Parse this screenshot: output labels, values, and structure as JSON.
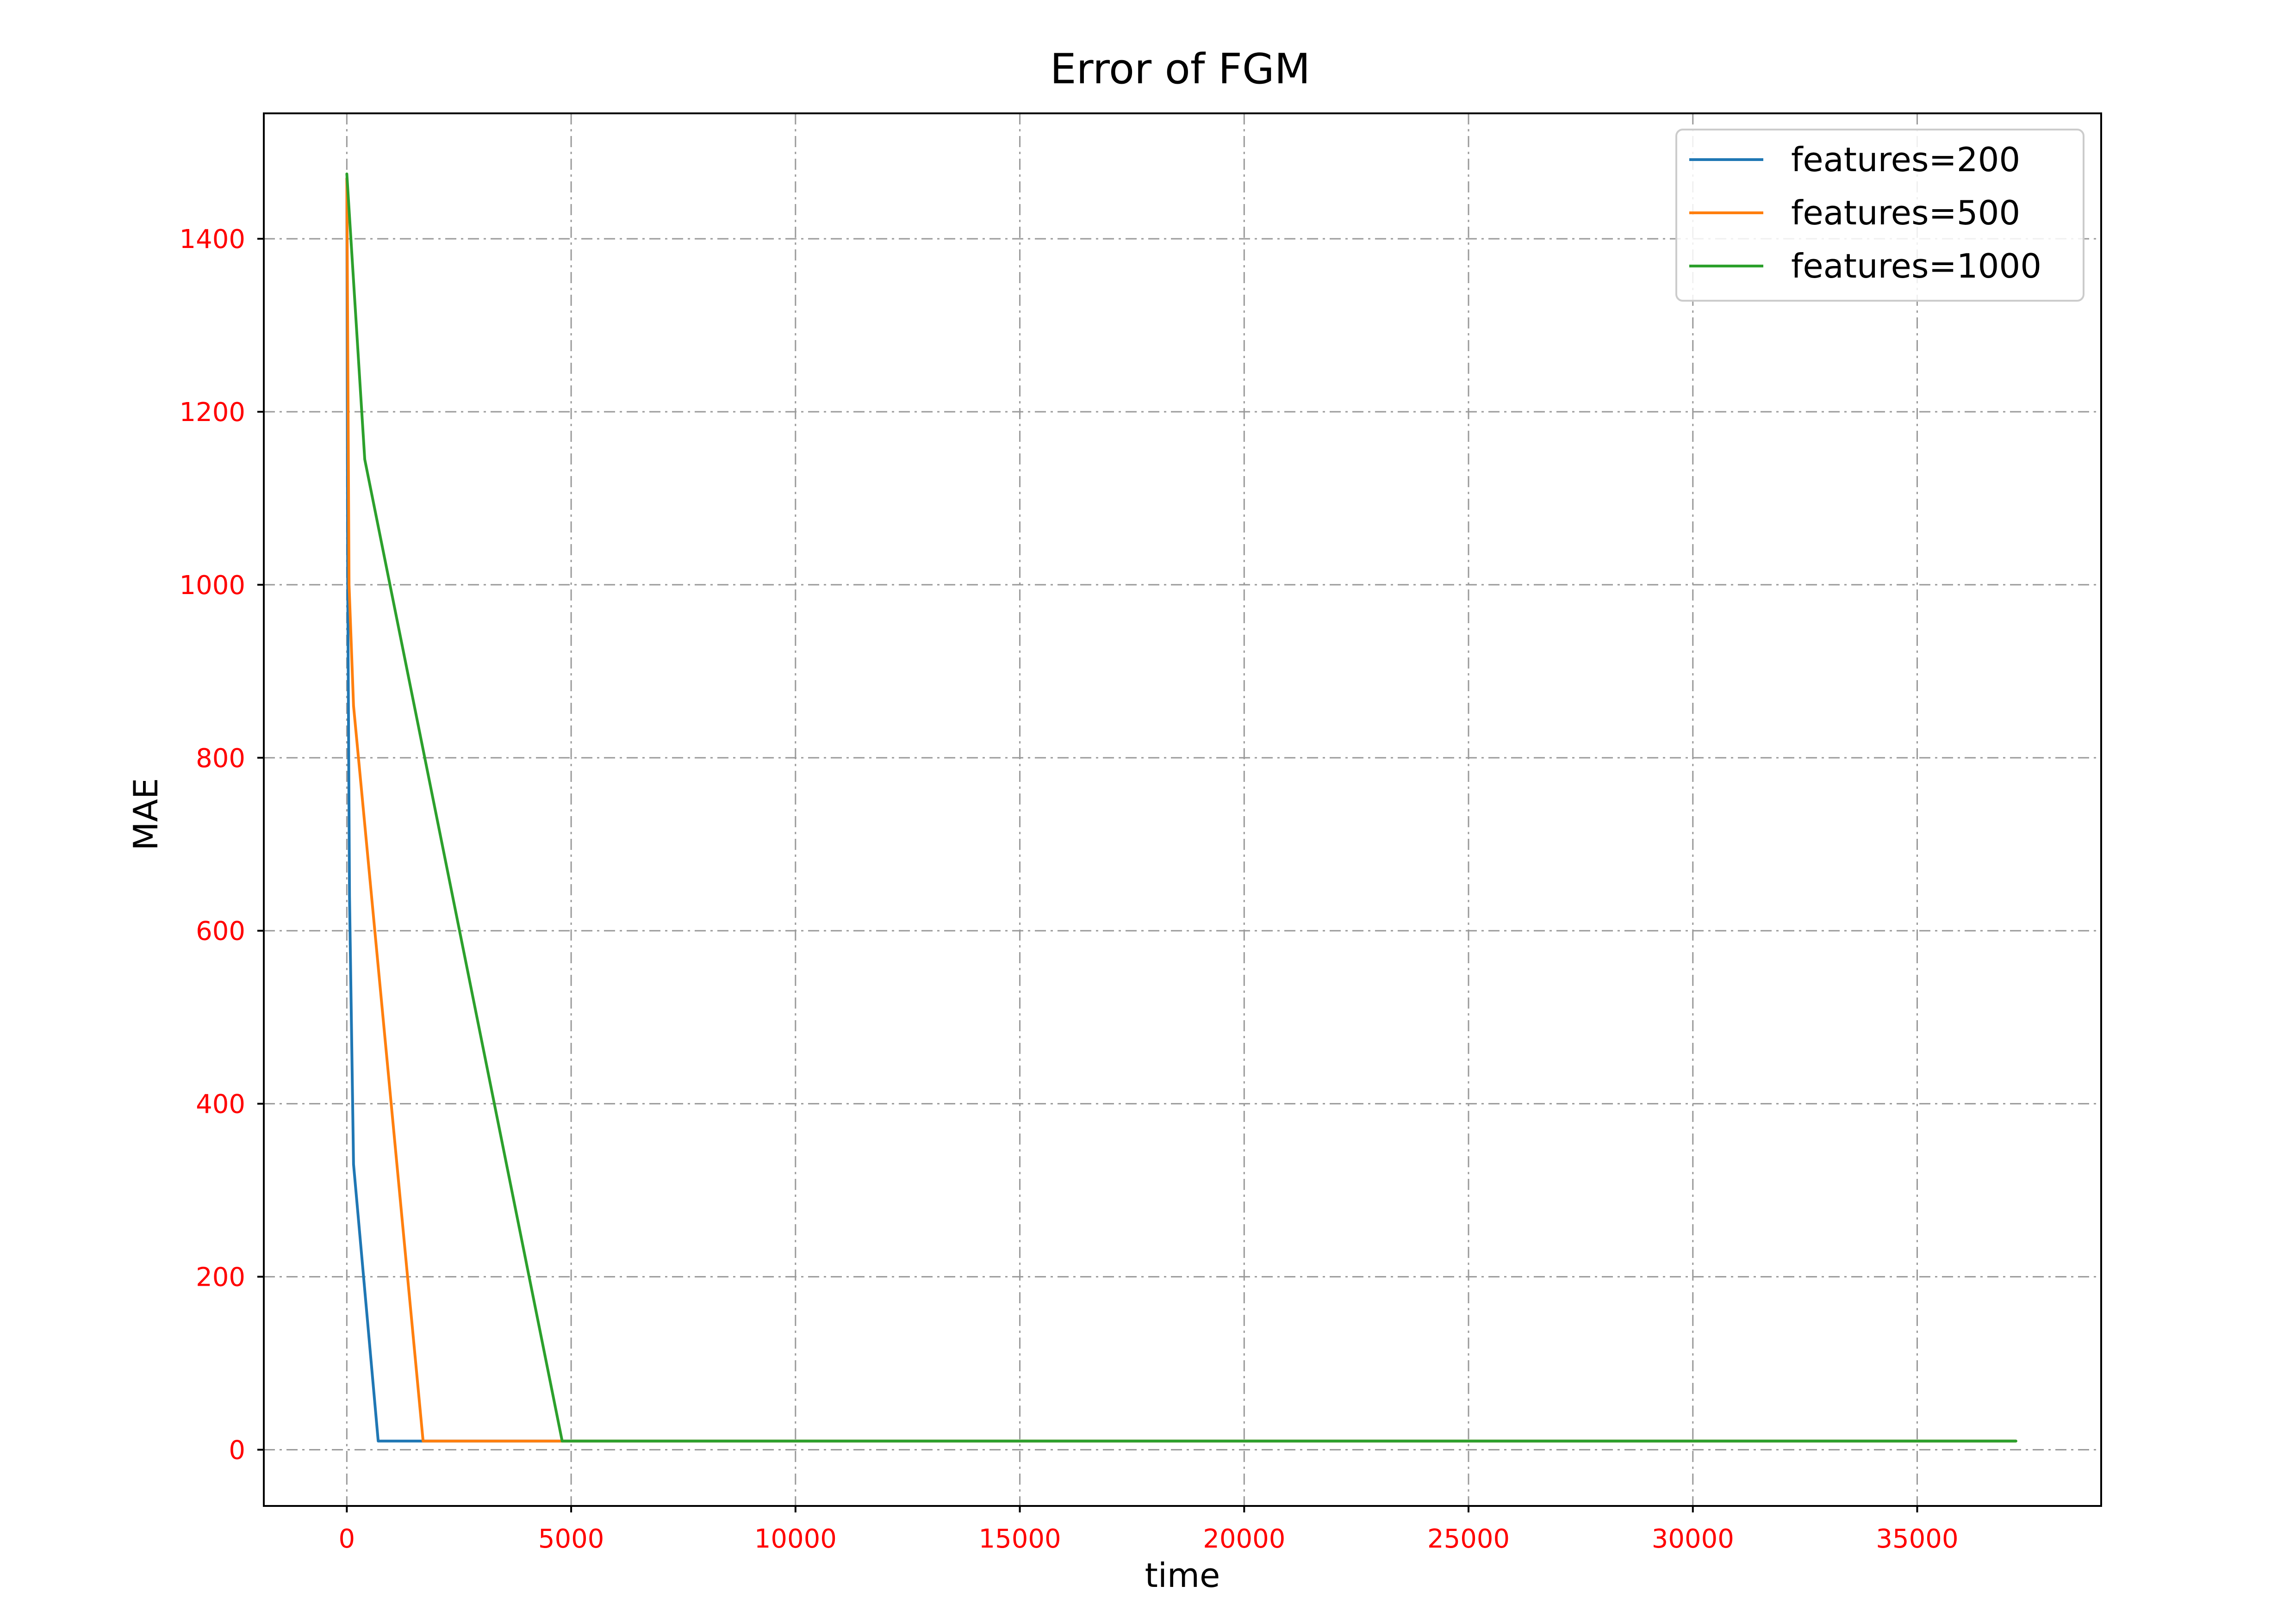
{
  "chart_data": {
    "type": "line",
    "title": "Error of FGM",
    "xlabel": "time",
    "ylabel": "MAE",
    "xlim": [
      -1850,
      39100
    ],
    "ylim": [
      -65,
      1545
    ],
    "xticks": [
      0,
      5000,
      10000,
      15000,
      20000,
      25000,
      30000,
      35000
    ],
    "yticks": [
      0,
      200,
      400,
      600,
      800,
      1000,
      1200,
      1400
    ],
    "grid": true,
    "legend_position": "top-right",
    "series": [
      {
        "name": "features=200",
        "color": "#1f77b4",
        "x": [
          0,
          20,
          60,
          150,
          700,
          37200
        ],
        "y": [
          1470,
          1000,
          640,
          330,
          10,
          10
        ]
      },
      {
        "name": "features=500",
        "color": "#ff7f0e",
        "x": [
          0,
          50,
          150,
          1700,
          37200
        ],
        "y": [
          1470,
          1000,
          860,
          10,
          10
        ]
      },
      {
        "name": "features=1000",
        "color": "#2ca02c",
        "x": [
          0,
          400,
          4800,
          37200
        ],
        "y": [
          1475,
          1145,
          10,
          10
        ]
      }
    ]
  }
}
